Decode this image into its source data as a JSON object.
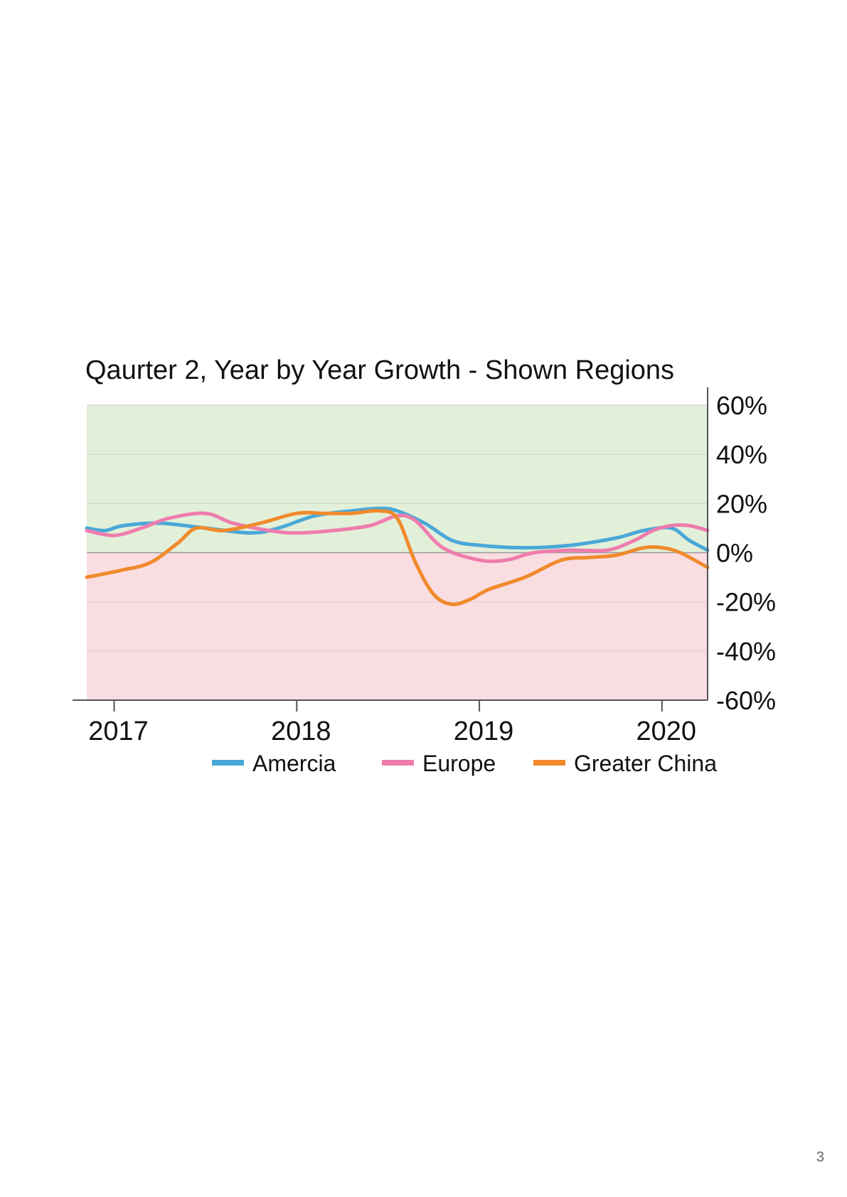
{
  "page": {
    "number": "3"
  },
  "chart_data": {
    "type": "line",
    "title": "Qaurter 2, Year by Year Growth - Shown Regions",
    "xlabel": "",
    "ylabel": "",
    "x_ticks": [
      "2017",
      "2018",
      "2019",
      "2020"
    ],
    "xlim": [
      2016.85,
      2020.25
    ],
    "y_ticks": [
      "60%",
      "40%",
      "20%",
      "0%",
      "-20%",
      "-40%",
      "-60%"
    ],
    "ylim": [
      -60,
      60
    ],
    "y_axis_side": "right",
    "grid": true,
    "legend": "bottom",
    "background_bands": [
      {
        "name": "positive",
        "range": [
          0,
          60
        ],
        "color": "#e2f0d9"
      },
      {
        "name": "negative",
        "range": [
          -60,
          0
        ],
        "color": "#fadde1"
      }
    ],
    "series": [
      {
        "name": "Amercia",
        "color": "#4aa8d8",
        "x": [
          2016.85,
          2016.95,
          2017.05,
          2017.25,
          2017.5,
          2017.75,
          2017.9,
          2018.1,
          2018.3,
          2018.45,
          2018.55,
          2018.7,
          2018.85,
          2019.0,
          2019.25,
          2019.5,
          2019.75,
          2019.9,
          2020.05,
          2020.15,
          2020.25
        ],
        "values": [
          10,
          9,
          11,
          12,
          10,
          8,
          10,
          15,
          17,
          18,
          17,
          12,
          5,
          3,
          2,
          3,
          6,
          9,
          10,
          5,
          1
        ]
      },
      {
        "name": "Europe",
        "color": "#ef7cad",
        "x": [
          2016.85,
          2017.0,
          2017.15,
          2017.3,
          2017.5,
          2017.65,
          2017.85,
          2018.0,
          2018.2,
          2018.4,
          2018.55,
          2018.65,
          2018.8,
          2019.0,
          2019.15,
          2019.3,
          2019.5,
          2019.7,
          2019.85,
          2019.95,
          2020.05,
          2020.15,
          2020.25
        ],
        "values": [
          9,
          7,
          10,
          14,
          16,
          12,
          9,
          8,
          9,
          11,
          15,
          13,
          2,
          -3,
          -3,
          0,
          1,
          1,
          5,
          9,
          11,
          11,
          9
        ]
      },
      {
        "name": "Greater China",
        "color": "#f08a2c",
        "x": [
          2016.85,
          2017.05,
          2017.2,
          2017.35,
          2017.45,
          2017.6,
          2017.8,
          2018.0,
          2018.15,
          2018.3,
          2018.45,
          2018.55,
          2018.65,
          2018.75,
          2018.85,
          2018.95,
          2019.05,
          2019.25,
          2019.45,
          2019.6,
          2019.75,
          2019.9,
          2020.0,
          2020.1,
          2020.25
        ],
        "values": [
          -10,
          -7,
          -4,
          4,
          10,
          9,
          12,
          16,
          16,
          16,
          17,
          14,
          -4,
          -17,
          -21,
          -19,
          -15,
          -10,
          -3,
          -2,
          -1,
          2,
          2,
          0,
          -6
        ]
      }
    ]
  }
}
